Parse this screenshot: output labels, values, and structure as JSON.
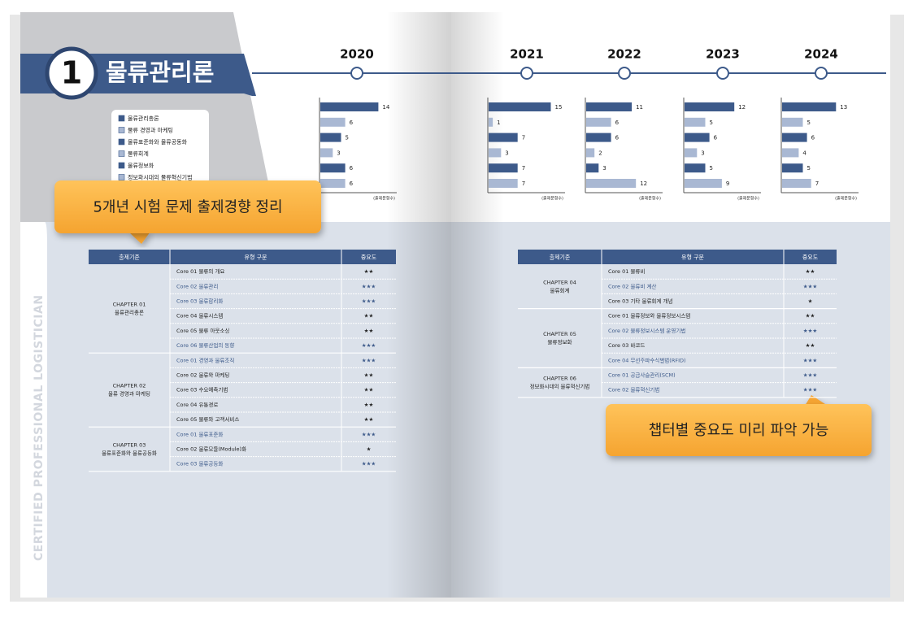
{
  "header": {
    "number": "1",
    "title": "물류관리론"
  },
  "side_text": "CERTIFIED PROFESSIONAL LOGISTICIAN",
  "legend": {
    "items": [
      {
        "label": "물류관리총론",
        "color": "#3d5a8a"
      },
      {
        "label": "물류 경영과 마케팅",
        "color": "#a9b8d3"
      },
      {
        "label": "물류표준화와 물류공동화",
        "color": "#3d5a8a"
      },
      {
        "label": "물류회계",
        "color": "#a9b8d3"
      },
      {
        "label": "물류정보화",
        "color": "#3d5a8a"
      },
      {
        "label": "정보화시대의 물류혁신기법",
        "color": "#a9b8d3"
      }
    ]
  },
  "charts": [
    {
      "year": "2020",
      "values": [
        14,
        6,
        5,
        3,
        6,
        6
      ],
      "unit": "(출제문항수)"
    },
    {
      "year": "2021",
      "values": [
        15,
        1,
        7,
        3,
        7,
        7
      ],
      "unit": "(출제문항수)"
    },
    {
      "year": "2022",
      "values": [
        11,
        6,
        6,
        2,
        3,
        12
      ],
      "unit": "(출제문항수)"
    },
    {
      "year": "2023",
      "values": [
        12,
        5,
        6,
        3,
        5,
        9
      ],
      "unit": "(출제문항수)"
    },
    {
      "year": "2024",
      "values": [
        13,
        5,
        6,
        4,
        5,
        7
      ],
      "unit": "(출제문항수)"
    }
  ],
  "callouts": [
    "5개년 시험 문제 출제경향 정리",
    "챕터별 중요도 미리 파악 가능"
  ],
  "tables": [
    {
      "headers": [
        "출제기준",
        "유형 구분",
        "중요도"
      ],
      "groups": [
        {
          "chapter": "CHAPTER 01",
          "name": "물류관리총론",
          "rows": [
            {
              "core": "Core 01 물류의 개요",
              "stars": "★★",
              "color": "#222222"
            },
            {
              "core": "Core 02 물류관리",
              "stars": "★★★",
              "color": "#3d5a8a"
            },
            {
              "core": "Core 03 물류합리화",
              "stars": "★★★",
              "color": "#3d5a8a"
            },
            {
              "core": "Core 04 물류시스템",
              "stars": "★★",
              "color": "#222222"
            },
            {
              "core": "Core 05 물류 아웃소싱",
              "stars": "★★",
              "color": "#222222"
            },
            {
              "core": "Core 06 물류산업의 동향",
              "stars": "★★★",
              "color": "#3d5a8a"
            }
          ]
        },
        {
          "chapter": "CHAPTER 02",
          "name": "물류 경영과 마케팅",
          "rows": [
            {
              "core": "Core 01 경영과 물류조직",
              "stars": "★★★",
              "color": "#3d5a8a"
            },
            {
              "core": "Core 02 물류와 마케팅",
              "stars": "★★",
              "color": "#222222"
            },
            {
              "core": "Core 03 수요예측기법",
              "stars": "★★",
              "color": "#222222"
            },
            {
              "core": "Core 04 유통경로",
              "stars": "★★",
              "color": "#222222"
            },
            {
              "core": "Core 05 물류와 고객서비스",
              "stars": "★★",
              "color": "#222222"
            }
          ]
        },
        {
          "chapter": "CHAPTER 03",
          "name": "물류표준화와 물류공동화",
          "rows": [
            {
              "core": "Core 01 물류표준화",
              "stars": "★★★",
              "color": "#3d5a8a"
            },
            {
              "core": "Core 02 물류모듈(Module)화",
              "stars": "★",
              "color": "#222222"
            },
            {
              "core": "Core 03 물류공동화",
              "stars": "★★★",
              "color": "#3d5a8a"
            }
          ]
        }
      ]
    },
    {
      "headers": [
        "출제기준",
        "유형 구분",
        "중요도"
      ],
      "groups": [
        {
          "chapter": "CHAPTER 04",
          "name": "물류회계",
          "rows": [
            {
              "core": "Core 01 물류비",
              "stars": "★★",
              "color": "#222222"
            },
            {
              "core": "Core 02 물류비 계산",
              "stars": "★★★",
              "color": "#3d5a8a"
            },
            {
              "core": "Core 03 기타 물류회계 개념",
              "stars": "★",
              "color": "#222222"
            }
          ]
        },
        {
          "chapter": "CHAPTER 05",
          "name": "물류정보화",
          "rows": [
            {
              "core": "Core 01 물류정보와 물류정보시스템",
              "stars": "★★",
              "color": "#222222"
            },
            {
              "core": "Core 02 물류정보시스템 운영기법",
              "stars": "★★★",
              "color": "#3d5a8a"
            },
            {
              "core": "Core 03 바코드",
              "stars": "★★",
              "color": "#222222"
            },
            {
              "core": "Core 04 무선주파수식별법(RFID)",
              "stars": "★★★",
              "color": "#3d5a8a"
            }
          ]
        },
        {
          "chapter": "CHAPTER 06",
          "name": "정보화시대의 물류혁신기법",
          "rows": [
            {
              "core": "Core 01 공급사슬관리(SCM)",
              "stars": "★★★",
              "color": "#3d5a8a"
            },
            {
              "core": "Core 02 물류혁신기법",
              "stars": "★★★",
              "color": "#3d5a8a"
            }
          ]
        }
      ]
    }
  ]
}
